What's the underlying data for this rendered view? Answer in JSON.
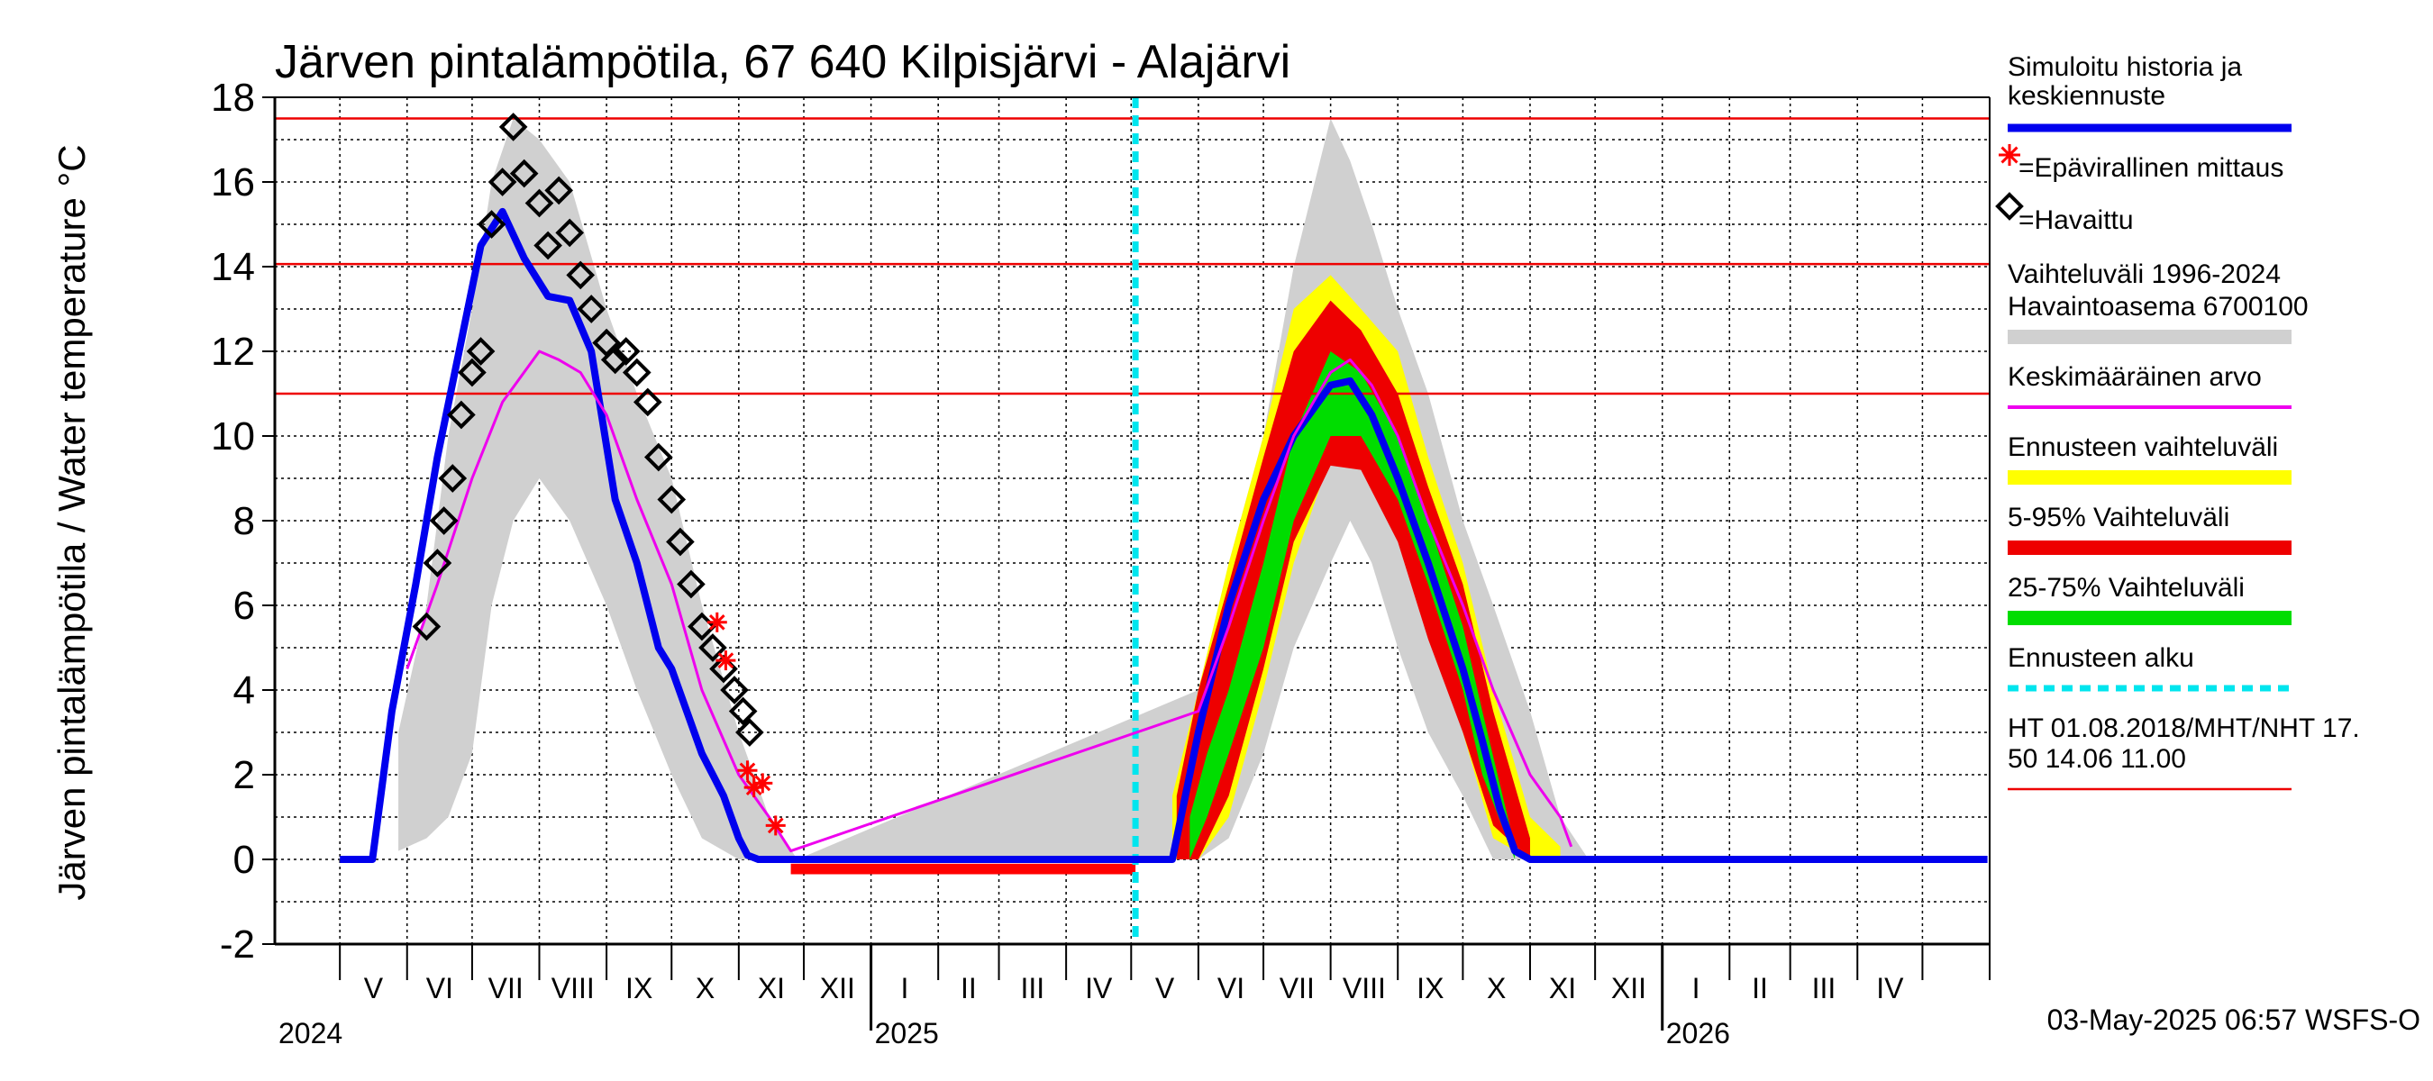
{
  "chart_data": {
    "type": "line",
    "title": "Järven pintalämpötila, 67 640 Kilpisjärvi - Alajärvi",
    "ylabel": "Järven pintalämpötila / Water temperature °C",
    "ylim": [
      -2,
      18
    ],
    "yticks": [
      "-2",
      "0",
      "2",
      "4",
      "6",
      "8",
      "10",
      "12",
      "14",
      "16",
      "18"
    ],
    "x_range": [
      "2024-04-01",
      "2026-05-31"
    ],
    "months": [
      "V",
      "VI",
      "VII",
      "VIII",
      "IX",
      "X",
      "XI",
      "XII",
      "I",
      "II",
      "III",
      "IV",
      "V",
      "VI",
      "VII",
      "VIII",
      "IX",
      "X",
      "XI",
      "XII",
      "I",
      "II",
      "III",
      "IV"
    ],
    "years": [
      "2024",
      "2025",
      "2026"
    ],
    "grid": true,
    "legend_position": "right",
    "forecast_start": "2025-05-03",
    "hlines": [
      17.5,
      14.06,
      11.0
    ],
    "colors": {
      "history": "#0000ee",
      "unofficial": "#ff0000",
      "observed": "#000000",
      "range": "#d0d0d0",
      "mean": "#ee00ee",
      "forecast_range": "#ffff00",
      "p5_95": "#ee0000",
      "p25_75": "#00dd00",
      "forecast_start": "#00e5ee",
      "hline": "#ee0000"
    },
    "series": [
      {
        "name": "Simuloitu historia ja keskiennuste",
        "x": [
          "2024-05-01",
          "2024-05-16",
          "2024-05-25",
          "2024-06-05",
          "2024-06-15",
          "2024-06-25",
          "2024-07-05",
          "2024-07-15",
          "2024-07-25",
          "2024-08-05",
          "2024-08-15",
          "2024-08-25",
          "2024-09-05",
          "2024-09-15",
          "2024-09-20",
          "2024-09-25",
          "2024-10-01",
          "2024-10-08",
          "2024-10-15",
          "2024-10-20",
          "2024-10-25",
          "2024-11-01",
          "2024-11-05",
          "2024-11-10",
          "2024-11-15",
          "2025-05-01",
          "2025-05-20",
          "2025-06-01",
          "2025-06-15",
          "2025-07-01",
          "2025-07-15",
          "2025-08-01",
          "2025-08-10",
          "2025-08-20",
          "2025-09-01",
          "2025-09-15",
          "2025-10-01",
          "2025-10-10",
          "2025-10-18",
          "2025-10-25",
          "2025-11-01",
          "2026-05-31"
        ],
        "y": [
          0,
          0,
          3.5,
          6.5,
          9.5,
          12,
          14.5,
          15.3,
          14.2,
          13.3,
          13.2,
          12,
          8.5,
          7,
          6,
          5,
          4.5,
          3.5,
          2.5,
          2,
          1.5,
          0.5,
          0.1,
          0,
          0,
          0,
          0,
          3,
          6,
          8.5,
          10,
          11.2,
          11.3,
          10.5,
          9,
          7,
          4.5,
          2.8,
          1.2,
          0.2,
          0,
          0
        ]
      },
      {
        "name": "Keskimääräinen arvo",
        "x": [
          "2024-06-01",
          "2024-06-15",
          "2024-07-01",
          "2024-07-15",
          "2024-08-01",
          "2024-08-10",
          "2024-08-20",
          "2024-09-01",
          "2024-09-15",
          "2024-10-01",
          "2024-10-15",
          "2024-11-01",
          "2024-11-15",
          "2024-11-25",
          "2025-06-01",
          "2025-06-15",
          "2025-07-01",
          "2025-07-15",
          "2025-08-01",
          "2025-08-10",
          "2025-08-20",
          "2025-09-01",
          "2025-09-15",
          "2025-10-01",
          "2025-10-15",
          "2025-11-01",
          "2025-11-15",
          "2025-11-20"
        ],
        "y": [
          4.5,
          6.5,
          9,
          10.8,
          12,
          11.8,
          11.5,
          10.5,
          8.5,
          6.5,
          4,
          2,
          1,
          0.2,
          3.5,
          5.5,
          8,
          10,
          11.5,
          11.8,
          11.2,
          10,
          8,
          6,
          4,
          2,
          1,
          0.3
        ]
      }
    ],
    "observed": [
      {
        "x": "2024-06-10",
        "y": 5.5
      },
      {
        "x": "2024-06-15",
        "y": 7
      },
      {
        "x": "2024-06-18",
        "y": 8
      },
      {
        "x": "2024-06-22",
        "y": 9
      },
      {
        "x": "2024-06-26",
        "y": 10.5
      },
      {
        "x": "2024-07-01",
        "y": 11.5
      },
      {
        "x": "2024-07-05",
        "y": 12
      },
      {
        "x": "2024-07-10",
        "y": 15
      },
      {
        "x": "2024-07-15",
        "y": 16
      },
      {
        "x": "2024-07-20",
        "y": 17.3
      },
      {
        "x": "2024-07-25",
        "y": 16.2
      },
      {
        "x": "2024-08-01",
        "y": 15.5
      },
      {
        "x": "2024-08-05",
        "y": 14.5
      },
      {
        "x": "2024-08-10",
        "y": 15.8
      },
      {
        "x": "2024-08-15",
        "y": 14.8
      },
      {
        "x": "2024-08-20",
        "y": 13.8
      },
      {
        "x": "2024-08-25",
        "y": 13
      },
      {
        "x": "2024-09-01",
        "y": 12.2
      },
      {
        "x": "2024-09-05",
        "y": 11.8
      },
      {
        "x": "2024-09-10",
        "y": 12
      },
      {
        "x": "2024-09-15",
        "y": 11.5
      },
      {
        "x": "2024-09-20",
        "y": 10.8
      },
      {
        "x": "2024-09-25",
        "y": 9.5
      },
      {
        "x": "2024-10-01",
        "y": 8.5
      },
      {
        "x": "2024-10-05",
        "y": 7.5
      },
      {
        "x": "2024-10-10",
        "y": 6.5
      },
      {
        "x": "2024-10-15",
        "y": 5.5
      },
      {
        "x": "2024-10-20",
        "y": 5
      },
      {
        "x": "2024-10-25",
        "y": 4.5
      },
      {
        "x": "2024-10-30",
        "y": 4
      },
      {
        "x": "2024-11-03",
        "y": 3.5
      },
      {
        "x": "2024-11-06",
        "y": 3
      }
    ],
    "unofficial": [
      {
        "x": "2024-10-22",
        "y": 5.6
      },
      {
        "x": "2024-10-26",
        "y": 4.7
      },
      {
        "x": "2024-11-05",
        "y": 2.1
      },
      {
        "x": "2024-11-08",
        "y": 1.7
      },
      {
        "x": "2024-11-12",
        "y": 1.8
      },
      {
        "x": "2024-11-18",
        "y": 0.8
      }
    ],
    "bands": {
      "range": {
        "x": [
          "2024-05-28",
          "2024-06-10",
          "2024-06-20",
          "2024-07-01",
          "2024-07-10",
          "2024-07-20",
          "2024-08-01",
          "2024-08-15",
          "2024-09-01",
          "2024-09-15",
          "2024-10-01",
          "2024-10-15",
          "2024-11-01",
          "2024-11-15",
          "2024-11-28",
          "2025-06-01",
          "2025-06-15",
          "2025-07-01",
          "2025-07-15",
          "2025-08-01",
          "2025-08-10",
          "2025-08-20",
          "2025-09-01",
          "2025-09-15",
          "2025-10-01",
          "2025-10-15",
          "2025-11-01",
          "2025-11-15",
          "2025-11-28"
        ],
        "low": [
          0.2,
          0.5,
          1,
          2.5,
          6,
          8,
          9,
          8,
          6,
          4,
          2,
          0.5,
          0,
          0,
          0,
          0,
          0.5,
          2.5,
          5,
          7,
          8,
          7,
          5,
          3,
          1.5,
          0,
          0,
          0,
          0
        ],
        "high": [
          3,
          6,
          10,
          13,
          16,
          17.5,
          17,
          16,
          13,
          11,
          9,
          6,
          3,
          1,
          0,
          4,
          7,
          10,
          14,
          17.5,
          16.5,
          15,
          13,
          11,
          8,
          6,
          3.5,
          1,
          0
        ]
      },
      "forecast_range": {
        "x": [
          "2025-05-20",
          "2025-06-01",
          "2025-06-15",
          "2025-07-01",
          "2025-07-15",
          "2025-08-01",
          "2025-08-15",
          "2025-09-01",
          "2025-09-15",
          "2025-10-01",
          "2025-10-15",
          "2025-11-01",
          "2025-11-15"
        ],
        "low": [
          0,
          0,
          1,
          4,
          7,
          9.5,
          9.5,
          8,
          5.5,
          3,
          0.5,
          0,
          0
        ],
        "high": [
          1.5,
          4,
          7,
          10,
          13,
          13.8,
          13,
          12,
          9.5,
          7,
          4,
          1,
          0.3
        ]
      },
      "p5_95": {
        "x": [
          "2025-05-22",
          "2025-06-01",
          "2025-06-15",
          "2025-07-01",
          "2025-07-15",
          "2025-08-01",
          "2025-08-15",
          "2025-09-01",
          "2025-09-15",
          "2025-10-01",
          "2025-10-15",
          "2025-11-01"
        ],
        "low": [
          0,
          0,
          1.5,
          4.5,
          7.5,
          9.3,
          9.2,
          7.5,
          5.2,
          3,
          0.8,
          0
        ],
        "high": [
          1.5,
          4,
          6.5,
          9.5,
          12,
          13.2,
          12.5,
          11,
          8.8,
          6.5,
          3.5,
          0.5
        ]
      },
      "p25_75": {
        "x": [
          "2025-05-28",
          "2025-06-05",
          "2025-06-15",
          "2025-07-01",
          "2025-07-15",
          "2025-08-01",
          "2025-08-15",
          "2025-09-01",
          "2025-09-15",
          "2025-10-01",
          "2025-10-10",
          "2025-10-25"
        ],
        "low": [
          0,
          1,
          2.5,
          5,
          8,
          10,
          10,
          8.5,
          6.5,
          4,
          2,
          0
        ],
        "high": [
          1,
          2.5,
          4,
          7,
          10,
          12,
          11.5,
          10,
          8,
          5.5,
          3.5,
          0.3
        ]
      },
      "ice": {
        "x": [
          "2024-11-25",
          "2025-05-03"
        ],
        "low": [
          -0.35,
          -0.35
        ],
        "high": [
          -0.1,
          -0.1
        ]
      }
    },
    "legend": [
      "Simuloitu historia ja keskiennuste",
      "=Epävirallinen mittaus",
      "=Havaittu",
      "Vaihteluväli 1996-2024 Havaintoasema 6700100",
      "Keskimääräinen arvo",
      "Ennusteen vaihteluväli",
      "5-95% Vaihteluväli",
      "25-75% Vaihteluväli",
      "Ennusteen alku",
      "HT 01.08.2018/MHT/NHT 17.50 14.06 11.00"
    ]
  },
  "legend_text": {
    "history": [
      "Simuloitu historia ja",
      "keskiennuste"
    ],
    "unofficial": "=Epävirallinen mittaus",
    "observed": "=Havaittu",
    "range": [
      "Vaihteluväli 1996-2024",
      " Havaintoasema 6700100"
    ],
    "mean": "Keskimääräinen arvo",
    "forecast_range": "Ennusteen vaihteluväli",
    "p5_95": "5-95% Vaihteluväli",
    "p25_75": "25-75% Vaihteluväli",
    "forecast_start": "Ennusteen alku",
    "hlines": [
      "HT 01.08.2018/MHT/NHT 17.",
      "50 14.06 11.00"
    ]
  },
  "footer": "03-May-2025 06:57 WSFS-O"
}
